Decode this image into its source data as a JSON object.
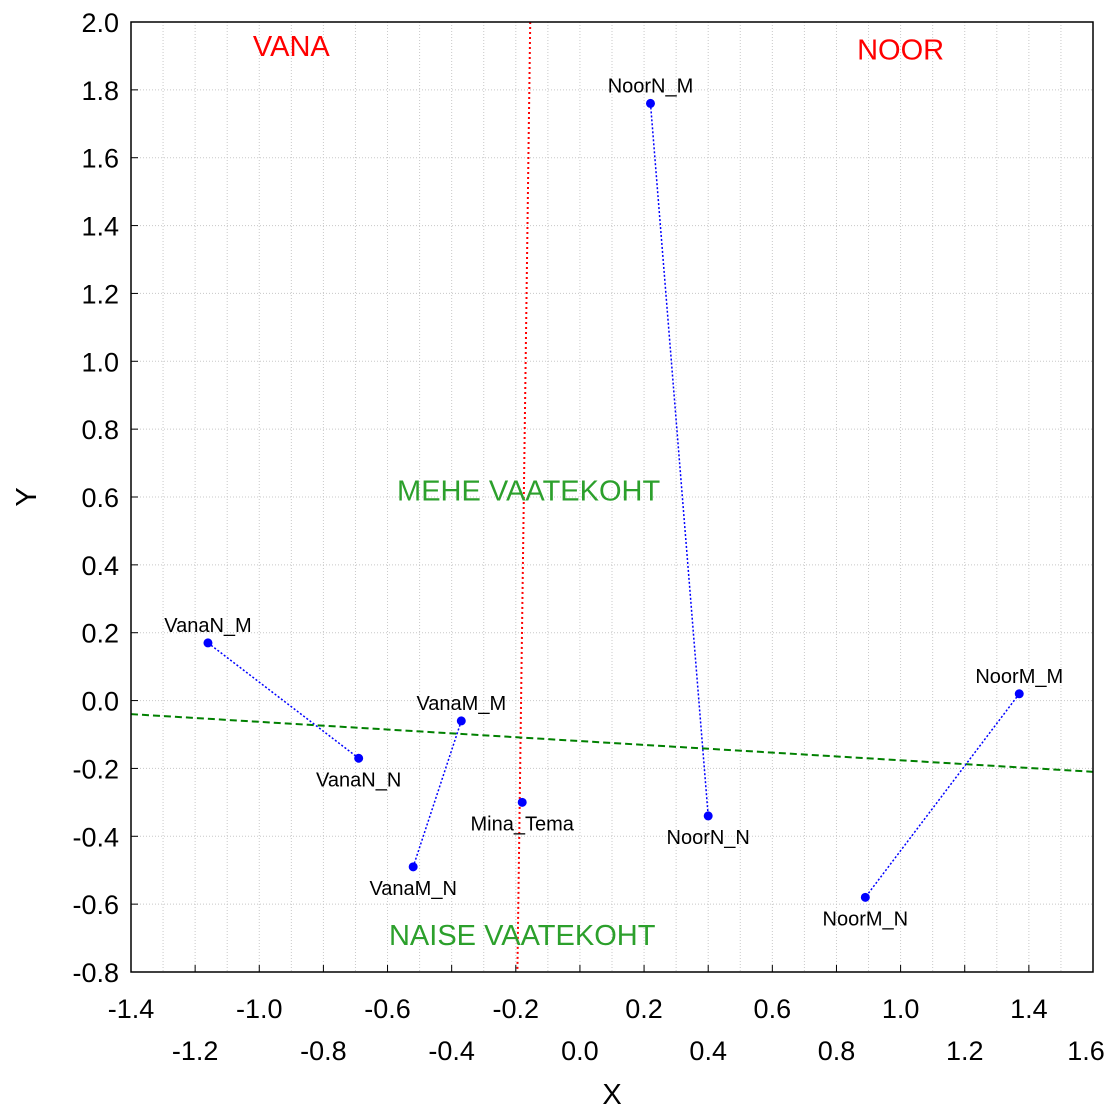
{
  "chart_data": {
    "type": "scatter",
    "title": "",
    "xlabel": "X",
    "ylabel": "Y",
    "xlim": [
      -1.4,
      1.6
    ],
    "ylim": [
      -0.8,
      2.0
    ],
    "grid": true,
    "xticks_upper": [
      "-1.4",
      "-1.0",
      "-0.6",
      "-0.2",
      "0.2",
      "0.6",
      "1.0",
      "1.4"
    ],
    "xticks_upper_values": [
      -1.4,
      -1.0,
      -0.6,
      -0.2,
      0.2,
      0.6,
      1.0,
      1.4
    ],
    "xticks_lower": [
      "-1.2",
      "-0.8",
      "-0.4",
      "0.0",
      "0.4",
      "0.8",
      "1.2",
      "1.6"
    ],
    "xticks_lower_values": [
      -1.2,
      -0.8,
      -0.4,
      0.0,
      0.4,
      0.8,
      1.2,
      1.6
    ],
    "yticks": [
      "2.0",
      "1.8",
      "1.6",
      "1.4",
      "1.2",
      "1.0",
      "0.8",
      "0.6",
      "0.4",
      "0.2",
      "0.0",
      "-0.2",
      "-0.4",
      "-0.6",
      "-0.8"
    ],
    "yticks_values": [
      2.0,
      1.8,
      1.6,
      1.4,
      1.2,
      1.0,
      0.8,
      0.6,
      0.4,
      0.2,
      0.0,
      -0.2,
      -0.4,
      -0.6,
      -0.8
    ],
    "points": [
      {
        "label": "NoorN_M",
        "x": 0.22,
        "y": 1.76,
        "label_pos": "above"
      },
      {
        "label": "NoorN_N",
        "x": 0.4,
        "y": -0.34,
        "label_pos": "below"
      },
      {
        "label": "NoorM_M",
        "x": 1.37,
        "y": 0.02,
        "label_pos": "above"
      },
      {
        "label": "NoorM_N",
        "x": 0.89,
        "y": -0.58,
        "label_pos": "below"
      },
      {
        "label": "VanaN_M",
        "x": -1.16,
        "y": 0.17,
        "label_pos": "above"
      },
      {
        "label": "VanaN_N",
        "x": -0.69,
        "y": -0.17,
        "label_pos": "below"
      },
      {
        "label": "VanaM_M",
        "x": -0.37,
        "y": -0.06,
        "label_pos": "above"
      },
      {
        "label": "VanaM_N",
        "x": -0.52,
        "y": -0.49,
        "label_pos": "below"
      },
      {
        "label": "Mina_Tema",
        "x": -0.18,
        "y": -0.3,
        "label_pos": "below"
      }
    ],
    "connections": [
      [
        "NoorN_M",
        "NoorN_N"
      ],
      [
        "NoorM_M",
        "NoorM_N"
      ],
      [
        "VanaN_M",
        "VanaN_N"
      ],
      [
        "VanaM_M",
        "VanaM_N"
      ]
    ],
    "reference_lines": [
      {
        "name": "vertical-divider",
        "x1": -0.155,
        "y1": 2.0,
        "x2": -0.195,
        "y2": -0.8,
        "color": "#ff0000",
        "style": "dotted"
      },
      {
        "name": "horizontal-divider",
        "x1": -1.4,
        "y1": -0.04,
        "x2": 1.6,
        "y2": -0.21,
        "color": "#008000",
        "style": "dashed"
      }
    ],
    "annotations": [
      {
        "text": "VANA",
        "x": -0.9,
        "y": 1.9,
        "color": "#ff0000"
      },
      {
        "text": "NOOR",
        "x": 1.0,
        "y": 1.89,
        "color": "#ff0000"
      },
      {
        "text": "MEHE VAATEKOHT",
        "x": -0.16,
        "y": 0.59,
        "color": "#2ca02c"
      },
      {
        "text": "NAISE VAATEKOHT",
        "x": -0.18,
        "y": -0.72,
        "color": "#2ca02c"
      }
    ],
    "colors": {
      "points": "#0000ff",
      "connections": "#0000ff",
      "grid": "#c8c8c8"
    }
  }
}
